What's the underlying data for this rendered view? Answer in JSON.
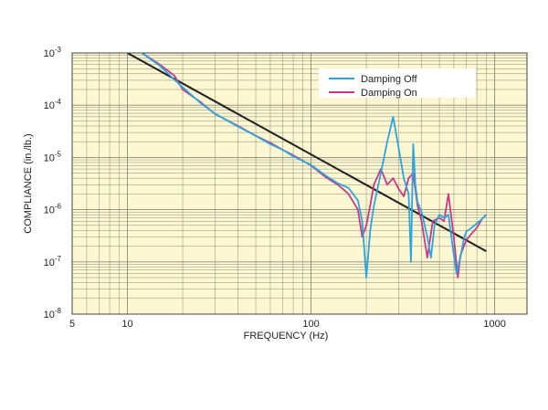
{
  "chart_data": {
    "type": "line",
    "title": "",
    "xlabel": "FREQUENCY (Hz)",
    "ylabel": "COMPLIANCE (in./lb.)",
    "x_scale": "log",
    "y_scale": "log",
    "xlim": [
      5,
      1500
    ],
    "ylim": [
      1e-08,
      0.001
    ],
    "x_ticks": [
      {
        "value": 5,
        "label": "5"
      },
      {
        "value": 10,
        "label": "10"
      },
      {
        "value": 100,
        "label": "100"
      },
      {
        "value": 1000,
        "label": "1000"
      }
    ],
    "y_ticks": [
      {
        "value": 0.001,
        "base": "10",
        "exp": "-3"
      },
      {
        "value": 0.0001,
        "base": "10",
        "exp": "-4"
      },
      {
        "value": 1e-05,
        "base": "10",
        "exp": "-5"
      },
      {
        "value": 1e-06,
        "base": "10",
        "exp": "-6"
      },
      {
        "value": 1e-07,
        "base": "10",
        "exp": "-7"
      },
      {
        "value": 1e-08,
        "base": "10",
        "exp": "-8"
      }
    ],
    "grid": true,
    "legend_position": "top-right",
    "colors": {
      "plot_background": "#fdf8d2",
      "grid": "#8a8a7a",
      "damping_off": "#27a6e0",
      "damping_on": "#c9378a",
      "reference": "#1f1f1f"
    },
    "series": [
      {
        "name": "Damping Off",
        "color_key": "damping_off",
        "x": [
          12,
          15,
          18,
          20,
          25,
          30,
          40,
          50,
          60,
          70,
          80,
          100,
          120,
          140,
          160,
          180,
          190,
          200,
          210,
          220,
          240,
          260,
          280,
          300,
          320,
          340,
          350,
          360,
          370,
          380,
          400,
          430,
          450,
          470,
          500,
          530,
          560,
          600,
          620,
          650,
          680,
          700,
          750,
          800,
          850,
          900
        ],
        "y": [
          0.001,
          0.00057,
          0.00031,
          0.00022,
          0.00011,
          6.9e-05,
          3.9e-05,
          2.6e-05,
          1.8e-05,
          1.4e-05,
          1.05e-05,
          7.2e-06,
          4.5e-06,
          3.2e-06,
          2.6e-06,
          1.5e-06,
          6e-07,
          5e-08,
          4e-07,
          1.2e-06,
          5e-06,
          2e-05,
          6e-05,
          1.5e-05,
          4e-06,
          2e-06,
          1e-07,
          1.8e-05,
          3e-06,
          1.4e-06,
          9e-07,
          3e-07,
          1.2e-07,
          5e-07,
          8e-07,
          7e-07,
          8e-07,
          1.3e-07,
          6e-08,
          1.2e-07,
          2.8e-07,
          3.8e-07,
          4.5e-07,
          5.5e-07,
          6.5e-07,
          8e-07
        ]
      },
      {
        "name": "Damping On",
        "color_key": "damping_on",
        "x": [
          12,
          15,
          18,
          20,
          25,
          30,
          40,
          50,
          60,
          70,
          80,
          100,
          120,
          140,
          160,
          180,
          190,
          200,
          210,
          220,
          240,
          260,
          280,
          300,
          320,
          340,
          360,
          380,
          400,
          430,
          460,
          500,
          530,
          560,
          600,
          630,
          650,
          680,
          700,
          750,
          800,
          850,
          900
        ],
        "y": [
          0.001,
          0.0006,
          0.00037,
          0.0002,
          0.000115,
          6.8e-05,
          4e-05,
          2.6e-05,
          1.9e-05,
          1.4e-05,
          1.1e-05,
          7e-06,
          4.2e-06,
          3e-06,
          2e-06,
          1e-06,
          3e-07,
          5e-07,
          1.2e-06,
          3e-06,
          6e-06,
          3e-06,
          4e-06,
          2.5e-06,
          1.8e-06,
          4e-06,
          5e-06,
          1.2e-06,
          6e-07,
          1.2e-07,
          6e-07,
          7e-07,
          6e-07,
          2e-06,
          2.8e-07,
          5e-08,
          1.3e-07,
          2e-07,
          2.6e-07,
          3.5e-07,
          4.5e-07,
          6.5e-07,
          8e-07
        ]
      },
      {
        "name": "",
        "color_key": "reference",
        "x": [
          10,
          900
        ],
        "y": [
          0.001,
          1.6e-07
        ]
      }
    ]
  }
}
